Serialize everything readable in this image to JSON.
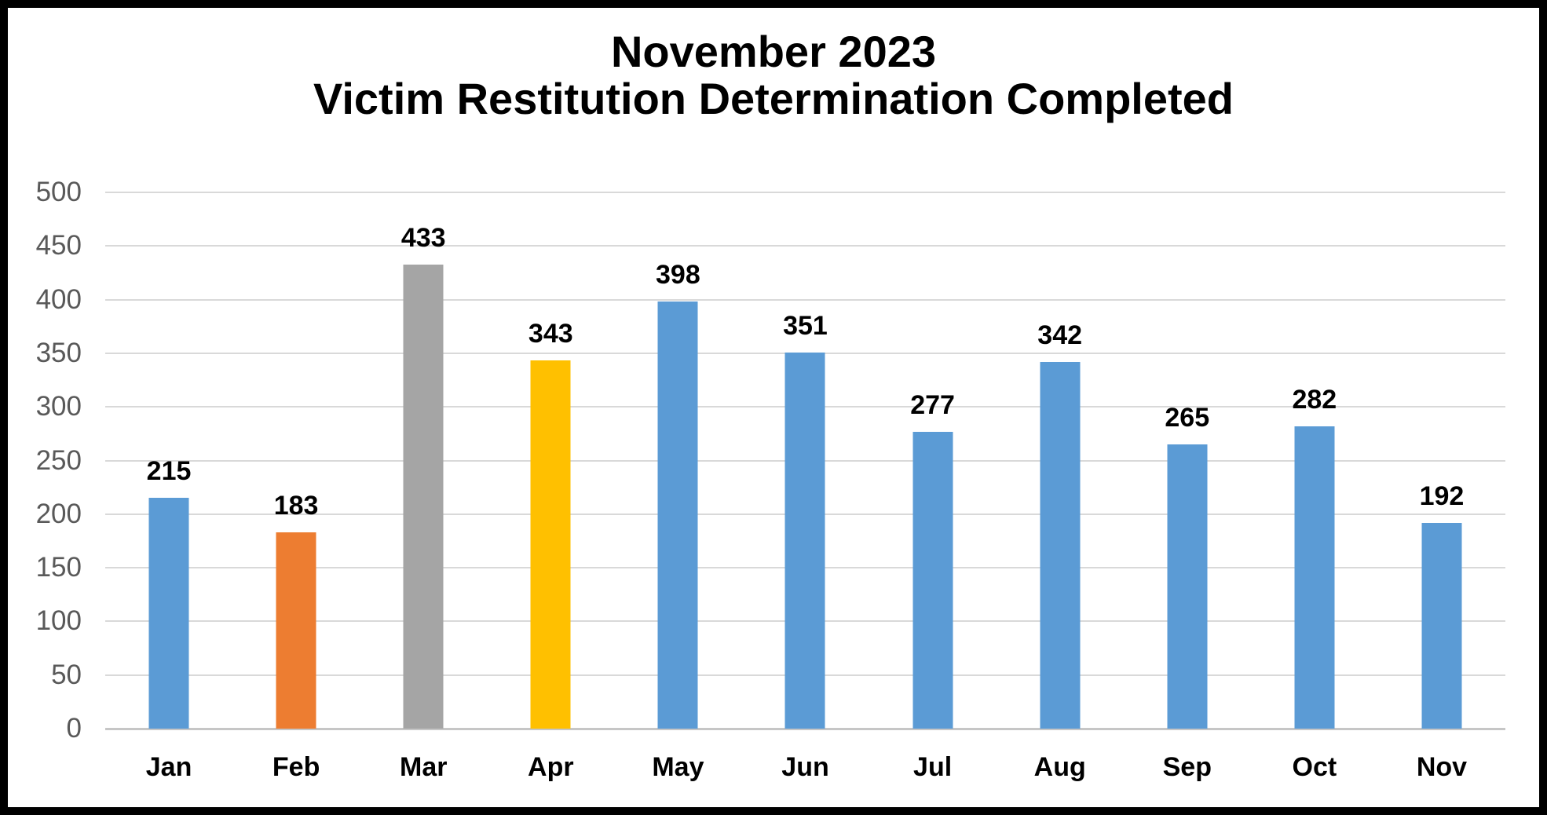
{
  "title": {
    "line1": "November 2023",
    "line2": "Victim Restitution Determination Completed"
  },
  "chart_data": {
    "type": "bar",
    "title": "November 2023",
    "subtitle": "Victim Restitution Determination Completed",
    "categories": [
      "Jan",
      "Feb",
      "Mar",
      "Apr",
      "May",
      "Jun",
      "Jul",
      "Aug",
      "Sep",
      "Oct",
      "Nov"
    ],
    "values": [
      215,
      183,
      433,
      343,
      398,
      351,
      277,
      342,
      265,
      282,
      192
    ],
    "bar_colors": [
      "#5B9BD5",
      "#ED7D31",
      "#A5A5A5",
      "#FFC000",
      "#5B9BD5",
      "#5B9BD5",
      "#5B9BD5",
      "#5B9BD5",
      "#5B9BD5",
      "#5B9BD5",
      "#5B9BD5"
    ],
    "xlabel": "",
    "ylabel": "",
    "ylim": [
      0,
      500
    ],
    "yticks": [
      500,
      450,
      400,
      350,
      300,
      250,
      200,
      150,
      100,
      50,
      0
    ],
    "grid": true,
    "legend": "none",
    "data_labels_shown": true
  },
  "colors": {
    "bar_default": "#5B9BD5",
    "bar_feb": "#ED7D31",
    "bar_mar": "#A5A5A5",
    "bar_apr": "#FFC000",
    "gridline": "#D9D9D9",
    "axis_line": "#C6C6C6",
    "y_tick_text": "#595959",
    "title_text": "#000000",
    "label_text": "#000000",
    "background": "#FFFFFF",
    "frame_border": "#000000"
  }
}
